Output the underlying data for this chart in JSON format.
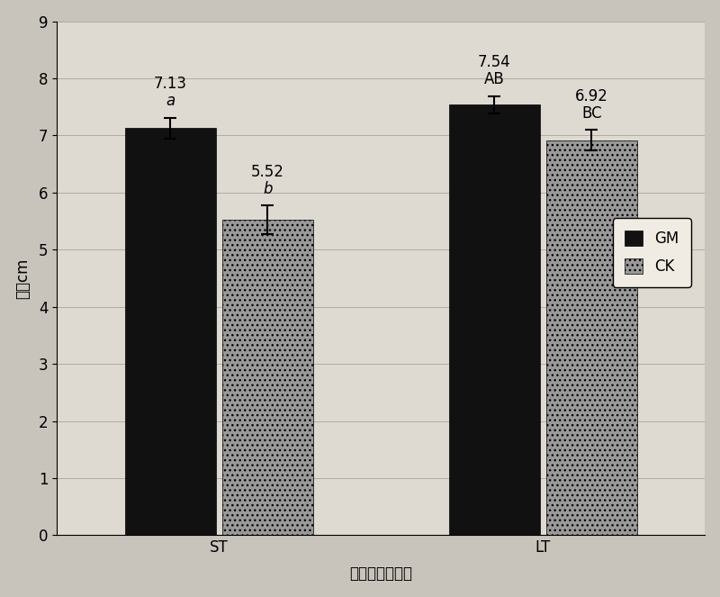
{
  "groups": [
    "ST",
    "LT"
  ],
  "gm_values": [
    7.13,
    7.54
  ],
  "ck_values": [
    5.52,
    6.92
  ],
  "gm_errors": [
    0.18,
    0.15
  ],
  "ck_errors": [
    0.25,
    0.18
  ],
  "gm_labels": [
    "7.13",
    "7.54"
  ],
  "ck_labels": [
    "5.52",
    "6.92"
  ],
  "gm_sig": [
    "a",
    "AB"
  ],
  "ck_sig": [
    "b",
    "BC"
  ],
  "gm_color": "#111111",
  "ck_color": "#999999",
  "ck_hatch": "...",
  "ylabel": "株高cm",
  "xlabel": "一年生三七株高",
  "ylim": [
    0,
    9
  ],
  "yticks": [
    0,
    1,
    2,
    3,
    4,
    5,
    6,
    7,
    8,
    9
  ],
  "legend_labels": [
    "GM",
    "CK"
  ],
  "bar_width": 0.28,
  "group_centers": [
    0.5,
    1.5
  ],
  "xlim": [
    0.0,
    2.0
  ],
  "background_color": "#c8c4bc",
  "plot_bg_color": "#dedad2",
  "label_fontsize": 12,
  "tick_fontsize": 12,
  "annot_fontsize": 12
}
